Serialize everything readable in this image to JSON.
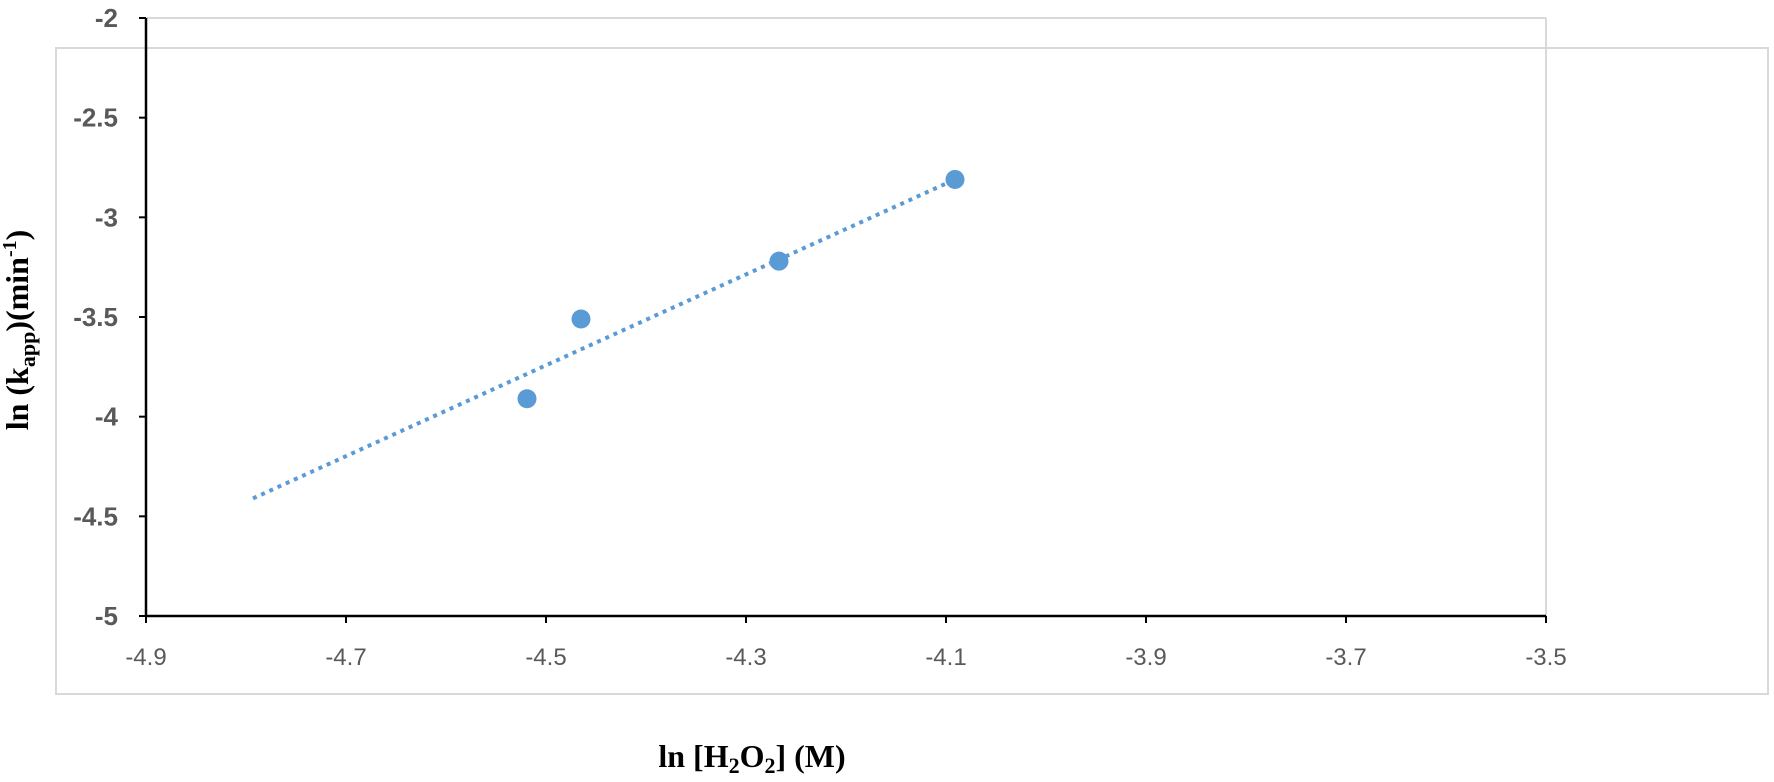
{
  "chart_data": {
    "type": "scatter",
    "title": "",
    "xlabel": "ln [H₂O₂] (M)",
    "ylabel": "ln (kapp)(min-1)",
    "xlabel_parts": {
      "a": "ln [H",
      "sub1": "2",
      "b": "O",
      "sub2": "2",
      "c": "] (M)"
    },
    "ylabel_parts": {
      "a": "ln (k",
      "sub": "app",
      "b": ")(min",
      "sup": "-1",
      "c": ")"
    },
    "xlim": [
      -4.9,
      -3.5
    ],
    "ylim": [
      -5,
      -2
    ],
    "x_ticks": [
      -4.9,
      -4.7,
      -4.5,
      -4.3,
      -4.1,
      -3.9,
      -3.7,
      -3.5
    ],
    "x_tick_labels": [
      "-4.9",
      "-4.7",
      "-4.5",
      "-4.3",
      "-4.1",
      "-3.9",
      "-3.7",
      "-3.5"
    ],
    "y_ticks": [
      -2,
      -2.5,
      -3,
      -3.5,
      -4,
      -4.5,
      -5
    ],
    "y_tick_labels": [
      "-2",
      "-2.5",
      "-3",
      "-3.5",
      "-4",
      "-4.5",
      "-5"
    ],
    "grid": false,
    "legend": "none",
    "series": [
      {
        "points": [
          {
            "x": -4.519,
            "y": -3.91
          },
          {
            "x": -4.465,
            "y": -3.51
          },
          {
            "x": -4.267,
            "y": -3.22
          },
          {
            "x": -4.091,
            "y": -2.81
          }
        ],
        "color": "#5B9BD5"
      }
    ],
    "trendline": {
      "style": "dotted",
      "color": "#5B9BD5",
      "x_start": -4.793,
      "y_start": -4.41,
      "x_end": -4.091,
      "y_end": -2.81
    }
  }
}
